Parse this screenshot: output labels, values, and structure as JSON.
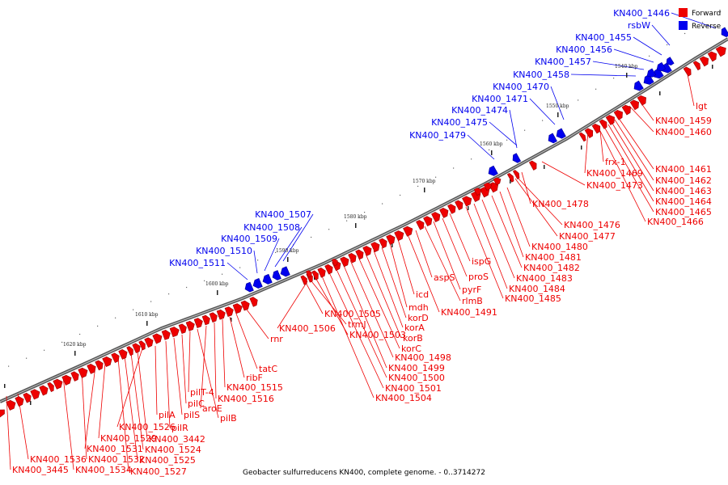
{
  "title": "Geobacter sulfurreducens KN400, complete genome. - 0..3714272",
  "legend": [
    {
      "label": "Forward",
      "color": "#ee0000"
    },
    {
      "label": "Reverse",
      "color": "#0000ee"
    }
  ],
  "colors": {
    "forward": "#ee0000",
    "reverse": "#0000ee",
    "backbone": "#888888"
  },
  "kbp_ticks": [
    "1540 kbp",
    "1550 kbp",
    "1560 kbp",
    "1570 kbp",
    "1580 kbp",
    "1590 kbp",
    "1600 kbp",
    "1610 kbp",
    "1620 kbp"
  ],
  "reverse_labels": [
    "KN400_1446",
    "rsbW",
    "KN400_1455",
    "KN400_1456",
    "KN400_1457",
    "KN400_1458",
    "KN400_1470",
    "KN400_1471",
    "KN400_1474",
    "KN400_1475",
    "KN400_1479",
    "KN400_1507",
    "KN400_1508",
    "KN400_1509",
    "KN400_1510",
    "KN400_1511"
  ],
  "forward_labels": [
    "lgt",
    "KN400_1459",
    "KN400_1460",
    "frx-1",
    "KN400_1469",
    "KN400_1461",
    "KN400_1462",
    "KN400_1463",
    "KN400_1464",
    "KN400_1465",
    "KN400_1466",
    "KN400_1473",
    "KN400_1478",
    "KN400_1476",
    "KN400_1477",
    "KN400_1480",
    "KN400_1481",
    "KN400_1482",
    "KN400_1483",
    "KN400_1484",
    "KN400_1485",
    "ispG",
    "proS",
    "pyrF",
    "rlmB",
    "aspS",
    "KN400_1491",
    "icd",
    "mdh",
    "korD",
    "korA",
    "korB",
    "korC",
    "KN400_1498",
    "KN400_1499",
    "KN400_1500",
    "KN400_1501",
    "KN400_1504",
    "KN400_1503",
    "trmJ",
    "KN400_1505",
    "KN400_1506",
    "rnr",
    "tatC",
    "ribF",
    "KN400_1515",
    "KN400_1516",
    "aroE",
    "pilB",
    "pilT-4",
    "pilC",
    "pilS",
    "pilR",
    "pilA",
    "KN400_3442",
    "KN400_1524",
    "KN400_1525",
    "KN400_1527",
    "KN400_1526",
    "KN400_1529",
    "KN400_1531",
    "KN400_1532",
    "KN400_1534",
    "KN400_1536",
    "KN400_3445"
  ]
}
